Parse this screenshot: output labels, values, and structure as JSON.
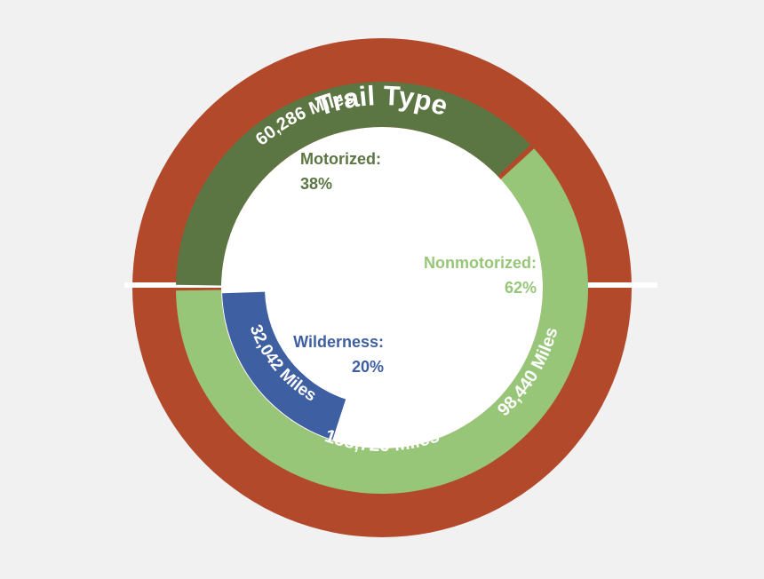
{
  "chart_data": {
    "type": "sunburst",
    "title": "Trail Type",
    "total": {
      "miles_label": "158,726 Miles",
      "value": 158726
    },
    "segments": [
      {
        "name": "Motorized",
        "label": "Motorized:",
        "percent_label": "38%",
        "percent": 38,
        "miles_label": "60,286 Miles",
        "miles": 60286
      },
      {
        "name": "Nonmotorized",
        "label": "Nonmotorized:",
        "percent_label": "62%",
        "percent": 62,
        "miles_label": "98,440 Miles",
        "miles": 98440
      },
      {
        "name": "Wilderness",
        "label": "Wilderness:",
        "percent_label": "20%",
        "percent": 20,
        "miles_label": "32,042 Miles",
        "miles": 32042,
        "parent": "Nonmotorized"
      }
    ]
  },
  "colors": {
    "background": "#f1f1f1",
    "outer_ring": "#b3492b",
    "motorized": "#5b7642",
    "nonmotorized": "#97c678",
    "wilderness": "#3f5fa3",
    "center": "#ffffff"
  }
}
